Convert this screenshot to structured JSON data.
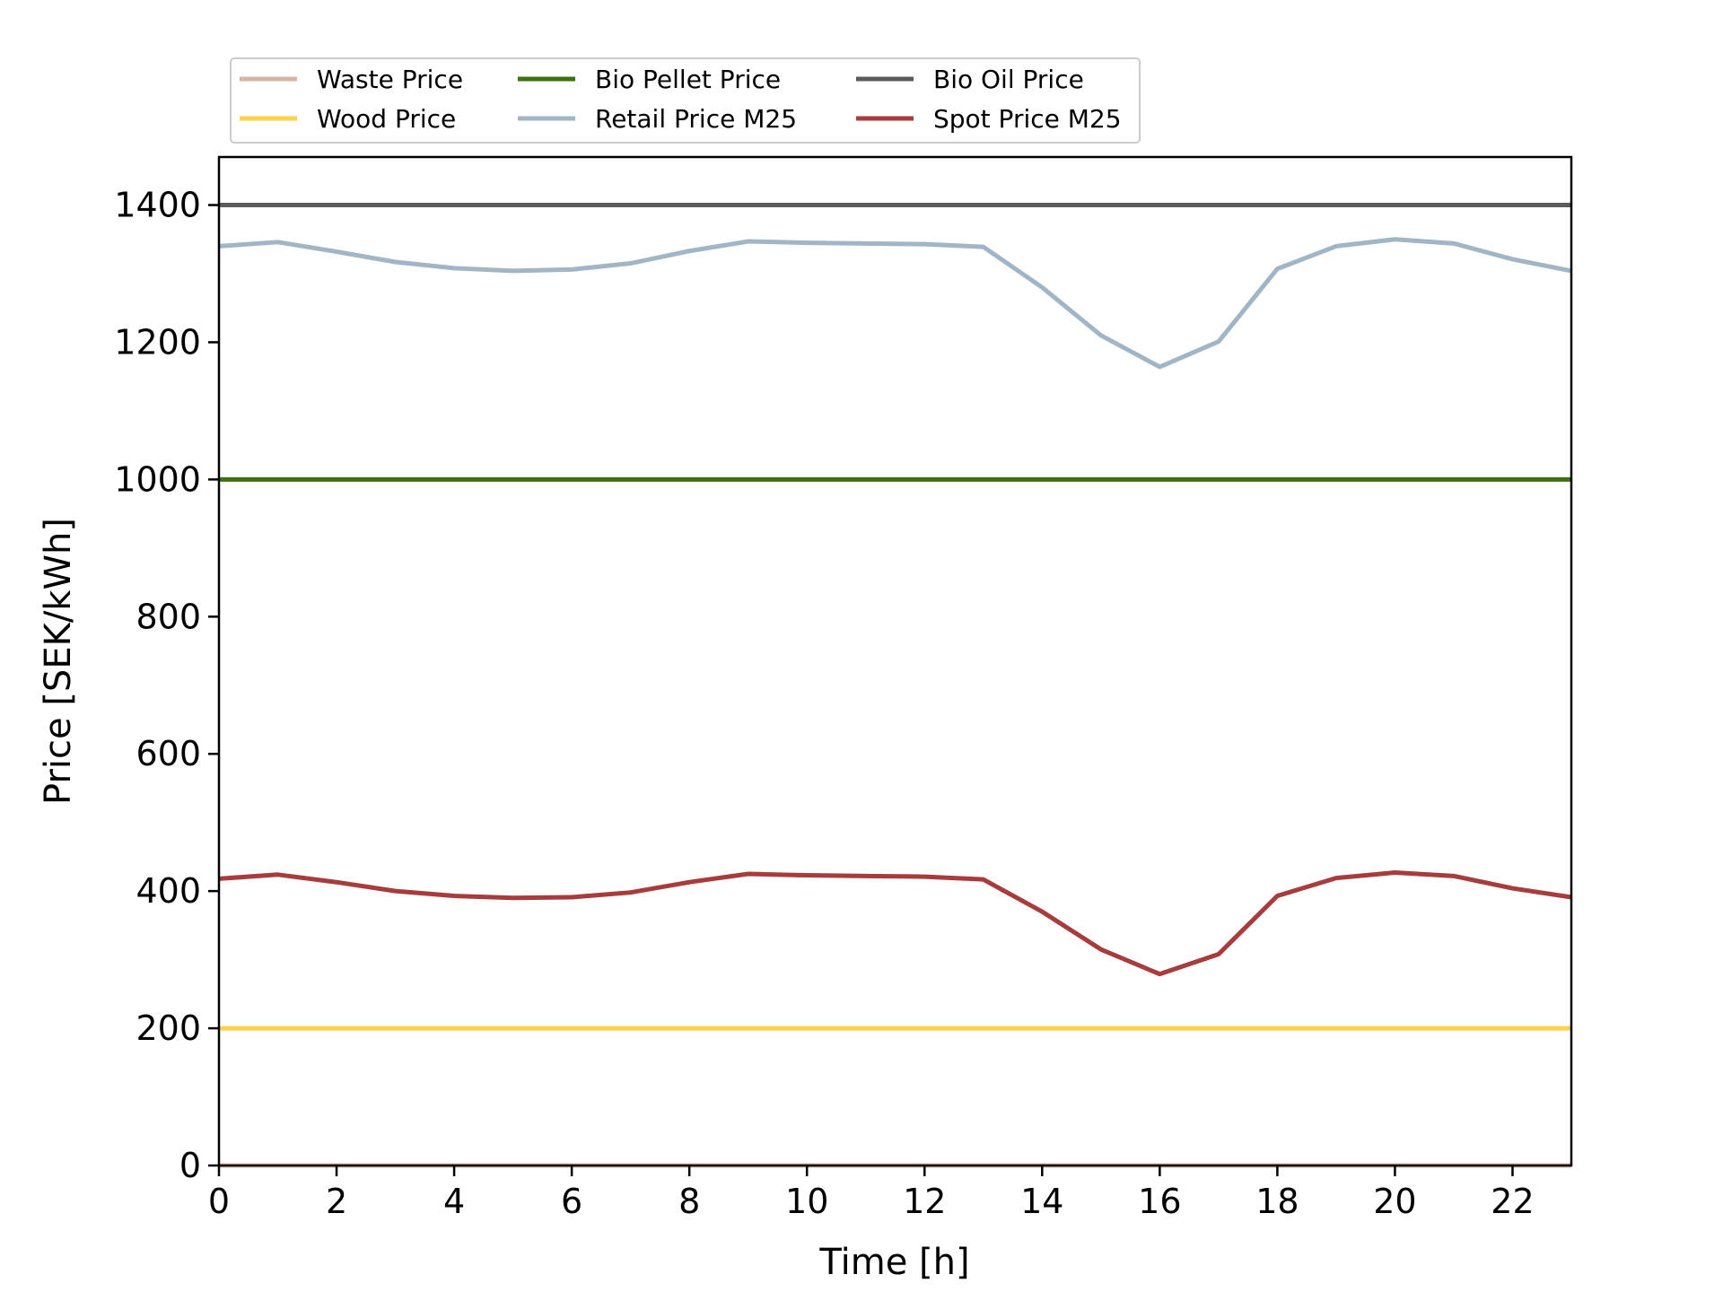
{
  "chart_data": {
    "type": "line",
    "title": "",
    "xlabel": "Time [h]",
    "ylabel": "Price [SEK/kWh]",
    "xlim": [
      0,
      23
    ],
    "ylim": [
      0,
      1470
    ],
    "xticks": [
      "0",
      "2",
      "4",
      "6",
      "8",
      "10",
      "12",
      "14",
      "16",
      "18",
      "20",
      "22"
    ],
    "yticks": [
      "0",
      "200",
      "400",
      "600",
      "800",
      "1000",
      "1200",
      "1400"
    ],
    "grid": false,
    "legend_placement": "top-left, above plot",
    "x": [
      0,
      1,
      2,
      3,
      4,
      5,
      6,
      7,
      8,
      9,
      10,
      11,
      12,
      13,
      14,
      15,
      16,
      17,
      18,
      19,
      20,
      21,
      22,
      23
    ],
    "series": [
      {
        "name": "Waste Price",
        "color": "#d7b5a6",
        "values": [
          0,
          0,
          0,
          0,
          0,
          0,
          0,
          0,
          0,
          0,
          0,
          0,
          0,
          0,
          0,
          0,
          0,
          0,
          0,
          0,
          0,
          0,
          0,
          0
        ]
      },
      {
        "name": "Wood Price",
        "color": "#ffd24d",
        "values": [
          200,
          200,
          200,
          200,
          200,
          200,
          200,
          200,
          200,
          200,
          200,
          200,
          200,
          200,
          200,
          200,
          200,
          200,
          200,
          200,
          200,
          200,
          200,
          200
        ]
      },
      {
        "name": "Bio Pellet Price",
        "color": "#3d7013",
        "values": [
          1000,
          1000,
          1000,
          1000,
          1000,
          1000,
          1000,
          1000,
          1000,
          1000,
          1000,
          1000,
          1000,
          1000,
          1000,
          1000,
          1000,
          1000,
          1000,
          1000,
          1000,
          1000,
          1000,
          1000
        ]
      },
      {
        "name": "Retail Price M25",
        "color": "#a0b5c6",
        "values": [
          1340,
          1346,
          1332,
          1317,
          1308,
          1304,
          1306,
          1315,
          1333,
          1347,
          1345,
          1344,
          1343,
          1339,
          1280,
          1210,
          1164,
          1201,
          1307,
          1340,
          1350,
          1344,
          1321,
          1304
        ]
      },
      {
        "name": "Bio Oil Price",
        "color": "#5b5b5b",
        "values": [
          1400,
          1400,
          1400,
          1400,
          1400,
          1400,
          1400,
          1400,
          1400,
          1400,
          1400,
          1400,
          1400,
          1400,
          1400,
          1400,
          1400,
          1400,
          1400,
          1400,
          1400,
          1400,
          1400,
          1400
        ]
      },
      {
        "name": "Spot Price M25",
        "color": "#a83c3c",
        "values": [
          418,
          424,
          413,
          400,
          393,
          390,
          391,
          398,
          413,
          425,
          423,
          422,
          421,
          417,
          370,
          315,
          279,
          308,
          393,
          419,
          427,
          422,
          404,
          391
        ]
      }
    ],
    "legend_order": [
      "Waste Price",
      "Wood Price",
      "Bio Pellet Price",
      "Retail Price M25",
      "Bio Oil Price",
      "Spot Price M25"
    ]
  }
}
